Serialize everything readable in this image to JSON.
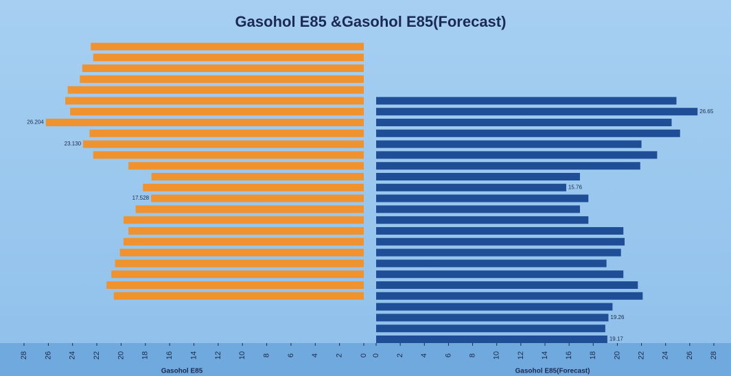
{
  "chart_data": {
    "type": "butterfly",
    "title": "Gasohol E85 &Gasohol E85(Forecast)",
    "categories": [
      null,
      null,
      null,
      null,
      null,
      null,
      null,
      null,
      null,
      null,
      null,
      null,
      null,
      null,
      null,
      null,
      null,
      null,
      null,
      null,
      null,
      null,
      null,
      null,
      null,
      null,
      null,
      null
    ],
    "series": [
      {
        "name": "Gasohol E85",
        "color": "#f0922e",
        "axis": "x",
        "values": [
          22.5,
          22.3,
          23.2,
          23.4,
          24.4,
          24.6,
          24.2,
          26.204,
          22.6,
          23.13,
          22.3,
          19.4,
          17.5,
          18.2,
          17.528,
          18.8,
          19.8,
          19.4,
          19.8,
          20.1,
          20.5,
          20.8,
          21.2,
          20.6,
          null,
          null,
          null,
          null
        ],
        "value_labels": [
          null,
          null,
          null,
          null,
          null,
          null,
          null,
          "26.204",
          null,
          "23.130",
          null,
          null,
          null,
          null,
          "17.528",
          null,
          null,
          null,
          null,
          null,
          null,
          null,
          null,
          null,
          null,
          null,
          null,
          null
        ]
      },
      {
        "name": "Gasohol E85(Forecast)",
        "color": "#1f4e96",
        "axis": "x2",
        "values": [
          null,
          null,
          null,
          null,
          null,
          24.9,
          26.65,
          24.5,
          25.2,
          22.0,
          23.3,
          21.9,
          16.9,
          15.76,
          17.6,
          16.9,
          17.6,
          20.5,
          20.6,
          20.3,
          19.1,
          20.5,
          21.7,
          22.1,
          19.6,
          19.26,
          19.0,
          19.17
        ],
        "value_labels": [
          null,
          null,
          null,
          null,
          null,
          null,
          "26.65",
          null,
          null,
          null,
          null,
          null,
          null,
          "15.76",
          null,
          null,
          null,
          null,
          null,
          null,
          null,
          null,
          null,
          null,
          null,
          "19.26",
          null,
          "19.17"
        ]
      }
    ],
    "xlim": [
      0,
      28
    ],
    "xticks": [
      0,
      2,
      4,
      6,
      8,
      10,
      12,
      14,
      16,
      18,
      20,
      22,
      24,
      26,
      28
    ],
    "x2lim": [
      0,
      28
    ],
    "x2ticks": [
      0,
      2,
      4,
      6,
      8,
      10,
      12,
      14,
      16,
      18,
      20,
      22,
      24,
      26,
      28
    ]
  }
}
